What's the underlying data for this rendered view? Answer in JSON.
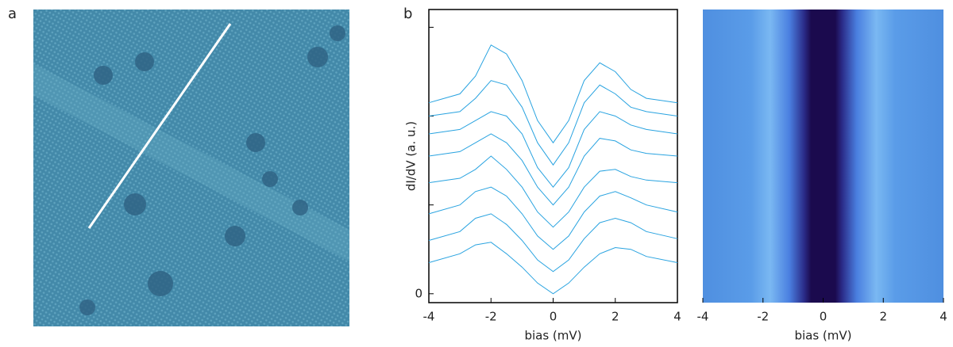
{
  "panel_labels": [
    "a",
    "b"
  ],
  "chart_data": [
    {
      "type": "line",
      "xlabel": "bias (mV)",
      "ylabel": "dI/dV (a. u.)",
      "x": [
        -4,
        -3,
        -2.5,
        -2,
        -1.5,
        -1,
        -0.5,
        0,
        0.5,
        1,
        1.5,
        2,
        2.5,
        3,
        4
      ],
      "color": "#29a3e0",
      "series": [
        {
          "values": [
            0.35,
            0.45,
            0.55,
            0.58,
            0.45,
            0.3,
            0.12,
            0.0,
            0.12,
            0.3,
            0.45,
            0.52,
            0.5,
            0.42,
            0.35
          ]
        },
        {
          "values": [
            0.6,
            0.7,
            0.85,
            0.9,
            0.78,
            0.6,
            0.38,
            0.25,
            0.38,
            0.62,
            0.8,
            0.85,
            0.8,
            0.7,
            0.62
          ]
        },
        {
          "values": [
            0.9,
            1.0,
            1.15,
            1.2,
            1.1,
            0.9,
            0.65,
            0.5,
            0.65,
            0.92,
            1.1,
            1.15,
            1.08,
            1.0,
            0.92
          ]
        },
        {
          "values": [
            1.25,
            1.3,
            1.4,
            1.55,
            1.4,
            1.2,
            0.92,
            0.75,
            0.92,
            1.2,
            1.38,
            1.4,
            1.32,
            1.28,
            1.25
          ]
        },
        {
          "values": [
            1.55,
            1.6,
            1.7,
            1.8,
            1.7,
            1.5,
            1.2,
            1.0,
            1.2,
            1.55,
            1.75,
            1.72,
            1.62,
            1.58,
            1.55
          ]
        },
        {
          "values": [
            1.8,
            1.85,
            1.95,
            2.05,
            2.0,
            1.8,
            1.42,
            1.2,
            1.42,
            1.85,
            2.05,
            2.0,
            1.9,
            1.85,
            1.8
          ]
        },
        {
          "values": [
            2.0,
            2.05,
            2.2,
            2.4,
            2.35,
            2.1,
            1.7,
            1.45,
            1.7,
            2.15,
            2.35,
            2.25,
            2.1,
            2.05,
            2.0
          ]
        },
        {
          "values": [
            2.15,
            2.25,
            2.45,
            2.8,
            2.7,
            2.4,
            1.95,
            1.7,
            1.95,
            2.4,
            2.6,
            2.5,
            2.3,
            2.2,
            2.15
          ]
        }
      ],
      "xlim": [
        -4,
        4
      ],
      "xticks": [
        -4,
        -2,
        0,
        2,
        4
      ],
      "ylim": [
        -0.1,
        3.2
      ],
      "yticks": [
        0,
        {
          "value": 1,
          "label": null
        },
        {
          "value": 2,
          "label": null
        },
        {
          "value": 3,
          "label": null
        }
      ]
    },
    {
      "type": "heatmap",
      "xlabel": "bias (mV)",
      "xlim": [
        -4,
        4
      ],
      "xticks": [
        -4,
        -2,
        0,
        2,
        4
      ]
    }
  ]
}
